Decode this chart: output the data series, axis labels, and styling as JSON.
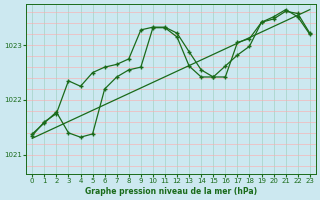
{
  "xlabel": "Graphe pression niveau de la mer (hPa)",
  "background_color": "#cce8f0",
  "grid_color_major_x": "#99ccbb",
  "grid_color_major_y": "#ffaaaa",
  "grid_color_minor_x": "#99ccbb",
  "grid_color_minor_y": "#ffaaaa",
  "line_color": "#1a6b1a",
  "xlim": [
    -0.5,
    23.5
  ],
  "ylim": [
    1020.65,
    1023.75
  ],
  "yticks": [
    1021,
    1022,
    1023
  ],
  "xticks": [
    0,
    1,
    2,
    3,
    4,
    5,
    6,
    7,
    8,
    9,
    10,
    11,
    12,
    13,
    14,
    15,
    16,
    17,
    18,
    19,
    20,
    21,
    22,
    23
  ],
  "line1_x": [
    0,
    23
  ],
  "line1_y": [
    1021.3,
    1023.65
  ],
  "line2_x": [
    0,
    1,
    2,
    3,
    4,
    5,
    6,
    7,
    8,
    9,
    10,
    11,
    12,
    13,
    14,
    15,
    16,
    17,
    18,
    19,
    20,
    21,
    22,
    23
  ],
  "line2_y": [
    1021.35,
    1021.6,
    1021.75,
    1022.35,
    1022.25,
    1022.5,
    1022.6,
    1022.65,
    1022.75,
    1023.28,
    1023.33,
    1023.33,
    1023.22,
    1022.88,
    1022.55,
    1022.42,
    1022.42,
    1023.05,
    1023.12,
    1023.42,
    1023.48,
    1023.62,
    1023.58,
    1023.22
  ],
  "line3_x": [
    0,
    1,
    2,
    3,
    4,
    5,
    6,
    7,
    8,
    9,
    10,
    11,
    12,
    13,
    14,
    15,
    16,
    17,
    18,
    19,
    20,
    21,
    22,
    23
  ],
  "line3_y": [
    1021.38,
    1021.58,
    1021.78,
    1021.4,
    1021.32,
    1021.38,
    1022.2,
    1022.42,
    1022.55,
    1022.6,
    1023.32,
    1023.32,
    1023.15,
    1022.62,
    1022.42,
    1022.42,
    1022.62,
    1022.82,
    1022.98,
    1023.42,
    1023.52,
    1023.65,
    1023.52,
    1023.2
  ]
}
